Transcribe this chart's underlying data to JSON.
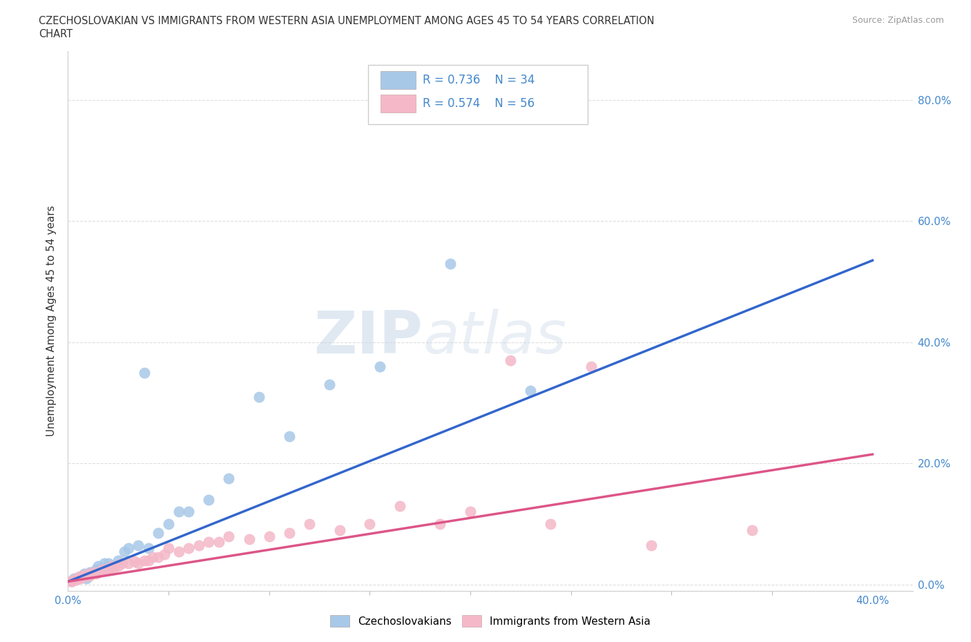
{
  "title_line1": "CZECHOSLOVAKIAN VS IMMIGRANTS FROM WESTERN ASIA UNEMPLOYMENT AMONG AGES 45 TO 54 YEARS CORRELATION",
  "title_line2": "CHART",
  "source_text": "Source: ZipAtlas.com",
  "ylabel": "Unemployment Among Ages 45 to 54 years",
  "xlim": [
    0.0,
    0.42
  ],
  "ylim": [
    -0.01,
    0.88
  ],
  "xtick_positions": [
    0.0,
    0.4
  ],
  "xticklabels": [
    "0.0%",
    "40.0%"
  ],
  "ytick_positions": [
    0.0,
    0.2,
    0.4,
    0.6,
    0.8
  ],
  "yticklabels_right": [
    "0.0%",
    "20.0%",
    "40.0%",
    "60.0%",
    "80.0%"
  ],
  "blue_color": "#a8c8e8",
  "pink_color": "#f4b8c8",
  "blue_line_color": "#3366cc",
  "pink_line_color": "#dd5588",
  "R_blue": 0.736,
  "N_blue": 34,
  "R_pink": 0.574,
  "N_pink": 56,
  "watermark_zip": "ZIP",
  "watermark_atlas": "atlas",
  "legend_label_blue": "Czechoslovakians",
  "legend_label_pink": "Immigrants from Western Asia",
  "blue_scatter_x": [
    0.002,
    0.003,
    0.005,
    0.006,
    0.007,
    0.008,
    0.009,
    0.01,
    0.011,
    0.012,
    0.014,
    0.015,
    0.016,
    0.018,
    0.02,
    0.022,
    0.025,
    0.028,
    0.03,
    0.035,
    0.038,
    0.04,
    0.045,
    0.05,
    0.055,
    0.06,
    0.07,
    0.08,
    0.095,
    0.11,
    0.13,
    0.155,
    0.19,
    0.23
  ],
  "blue_scatter_y": [
    0.005,
    0.01,
    0.01,
    0.013,
    0.015,
    0.018,
    0.01,
    0.015,
    0.02,
    0.02,
    0.025,
    0.03,
    0.025,
    0.035,
    0.035,
    0.03,
    0.04,
    0.055,
    0.06,
    0.065,
    0.35,
    0.06,
    0.085,
    0.1,
    0.12,
    0.12,
    0.14,
    0.175,
    0.31,
    0.245,
    0.33,
    0.36,
    0.53,
    0.32
  ],
  "pink_scatter_x": [
    0.001,
    0.002,
    0.003,
    0.004,
    0.005,
    0.005,
    0.006,
    0.007,
    0.007,
    0.008,
    0.009,
    0.01,
    0.011,
    0.012,
    0.013,
    0.014,
    0.015,
    0.016,
    0.017,
    0.018,
    0.019,
    0.02,
    0.021,
    0.022,
    0.023,
    0.025,
    0.027,
    0.03,
    0.033,
    0.035,
    0.038,
    0.04,
    0.042,
    0.045,
    0.048,
    0.05,
    0.055,
    0.06,
    0.065,
    0.07,
    0.075,
    0.08,
    0.09,
    0.1,
    0.11,
    0.12,
    0.135,
    0.15,
    0.165,
    0.185,
    0.2,
    0.22,
    0.24,
    0.26,
    0.29,
    0.34
  ],
  "pink_scatter_y": [
    0.005,
    0.005,
    0.008,
    0.008,
    0.01,
    0.012,
    0.01,
    0.012,
    0.015,
    0.015,
    0.015,
    0.018,
    0.015,
    0.018,
    0.02,
    0.018,
    0.02,
    0.022,
    0.025,
    0.025,
    0.025,
    0.025,
    0.028,
    0.03,
    0.028,
    0.03,
    0.035,
    0.035,
    0.038,
    0.035,
    0.04,
    0.04,
    0.045,
    0.045,
    0.05,
    0.06,
    0.055,
    0.06,
    0.065,
    0.07,
    0.07,
    0.08,
    0.075,
    0.08,
    0.085,
    0.1,
    0.09,
    0.1,
    0.13,
    0.1,
    0.12,
    0.37,
    0.1,
    0.36,
    0.065,
    0.09
  ],
  "blue_line_x": [
    0.0,
    0.4
  ],
  "blue_line_y": [
    0.005,
    0.535
  ],
  "pink_line_x": [
    0.0,
    0.4
  ],
  "pink_line_y": [
    0.005,
    0.215
  ],
  "background_color": "#ffffff",
  "grid_color": "#dddddd",
  "tick_color": "#4488cc",
  "legend_box_color": "#f0f4f8"
}
